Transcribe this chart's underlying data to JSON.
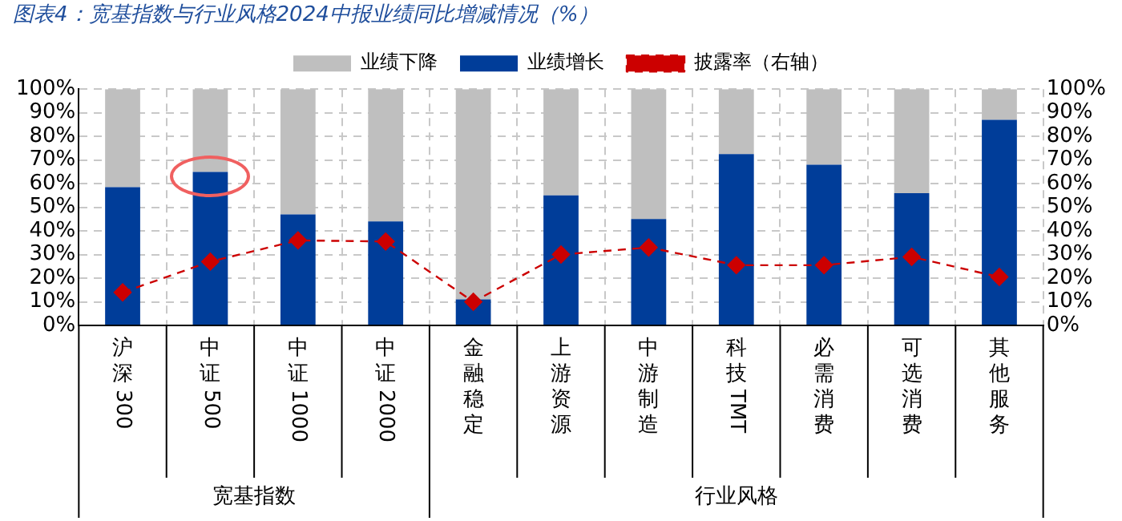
{
  "chart_data": {
    "type": "bar",
    "title": "图表4：宽基指数与行业风格2024中报业绩同比增减情况（%）",
    "categories": [
      "沪深300",
      "中证500",
      "中证1000",
      "中证2000",
      "金融稳定",
      "上游资源",
      "中游制造",
      "科技TMT",
      "必需消费",
      "可选消费",
      "其他服务"
    ],
    "stacked": true,
    "series": [
      {
        "name": "业绩增长",
        "color": "#003d99",
        "values": [
          58.5,
          65,
          47,
          44,
          11,
          55,
          45,
          72.5,
          68,
          56,
          87
        ]
      },
      {
        "name": "业绩下降",
        "color": "#bfbfbf",
        "values": [
          41.5,
          35,
          53,
          56,
          89,
          45,
          55,
          27.5,
          32,
          44,
          13
        ]
      },
      {
        "name": "披露率（右轴）",
        "type": "line",
        "axis": "y2",
        "color": "#cc0000",
        "marker": "diamond",
        "line_style": "dashed",
        "values": [
          14,
          27,
          36,
          35.5,
          10,
          30,
          33,
          25.5,
          25.5,
          29,
          20.5
        ]
      }
    ],
    "ylim": [
      0,
      100
    ],
    "yticks": [
      {
        "value": 0,
        "label": "0%"
      },
      {
        "value": 10,
        "label": "10%"
      },
      {
        "value": 20,
        "label": "20%"
      },
      {
        "value": 30,
        "label": "30%"
      },
      {
        "value": 40,
        "label": "40%"
      },
      {
        "value": 50,
        "label": "50%"
      },
      {
        "value": 60,
        "label": "60%"
      },
      {
        "value": 70,
        "label": "70%"
      },
      {
        "value": 80,
        "label": "80%"
      },
      {
        "value": 90,
        "label": "90%"
      },
      {
        "value": 100,
        "label": "100%"
      }
    ],
    "y2lim": [
      0,
      100
    ],
    "y2ticks": [
      {
        "value": 0,
        "label": "0%"
      },
      {
        "value": 10,
        "label": "10%"
      },
      {
        "value": 20,
        "label": "20%"
      },
      {
        "value": 30,
        "label": "30%"
      },
      {
        "value": 40,
        "label": "40%"
      },
      {
        "value": 50,
        "label": "50%"
      },
      {
        "value": 60,
        "label": "60%"
      },
      {
        "value": 70,
        "label": "70%"
      },
      {
        "value": 80,
        "label": "80%"
      },
      {
        "value": 90,
        "label": "90%"
      },
      {
        "value": 100,
        "label": "100%"
      }
    ],
    "grid": true,
    "legend": "top",
    "annotations": [
      "宽基指数",
      "行业风格"
    ]
  }
}
